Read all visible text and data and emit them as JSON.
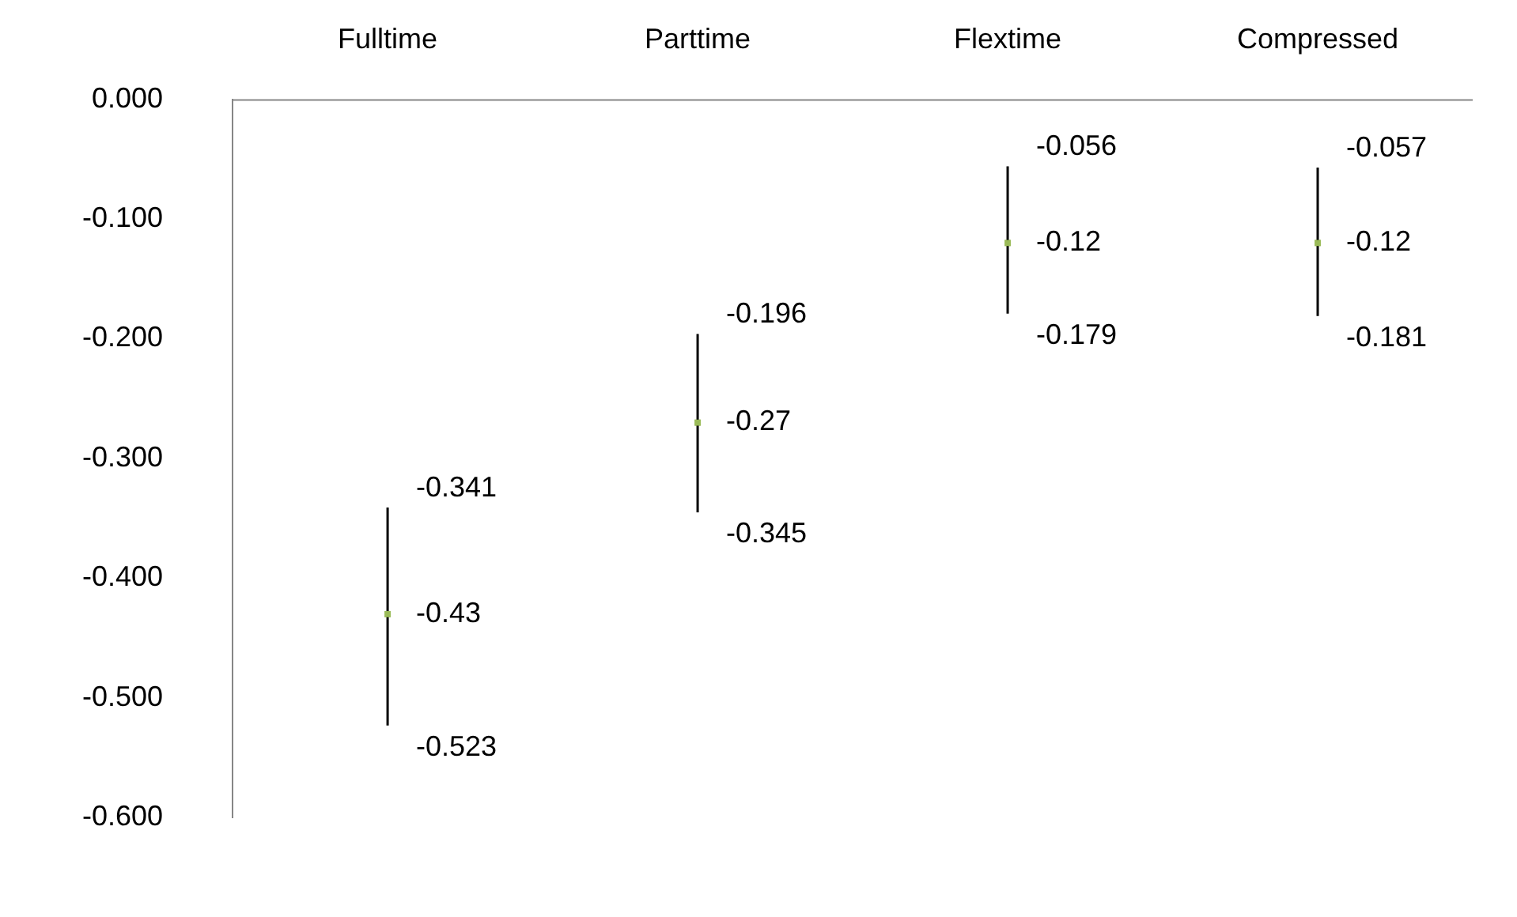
{
  "chart_data": {
    "type": "scatter",
    "categories": [
      "Fulltime",
      "Parttime",
      "Flextime",
      "Compressed"
    ],
    "series": [
      {
        "color": "#9bbb59",
        "values": [
          -0.43,
          -0.27,
          -0.12,
          -0.12
        ],
        "errors": [
          [
            -0.523,
            -0.341
          ],
          [
            -0.345,
            -0.196
          ],
          [
            -0.179,
            -0.056
          ],
          [
            -0.181,
            -0.057
          ]
        ]
      }
    ],
    "ylim": [
      -0.6,
      0
    ],
    "yticks": [
      {
        "value": 0,
        "label": "0.000"
      },
      {
        "value": -0.1,
        "label": "-0.100"
      },
      {
        "value": -0.2,
        "label": "-0.200"
      },
      {
        "value": -0.3,
        "label": "-0.300"
      },
      {
        "value": -0.4,
        "label": "-0.400"
      },
      {
        "value": -0.5,
        "label": "-0.500"
      },
      {
        "value": -0.6,
        "label": "-0.600"
      }
    ],
    "grid": false,
    "legend": false,
    "marker": "square",
    "data_labels": true,
    "annotations": [
      {
        "text": "-0.341",
        "x": "Fulltime",
        "y": -0.341
      },
      {
        "text": "-0.523",
        "x": "Fulltime",
        "y": -0.523
      },
      {
        "text": "-0.196",
        "x": "Parttime",
        "y": -0.196
      },
      {
        "text": "-0.345",
        "x": "Parttime",
        "y": -0.345
      },
      {
        "text": "-0.056",
        "x": "Flextime",
        "y": -0.056
      },
      {
        "text": "-0.179",
        "x": "Flextime",
        "y": -0.179
      },
      {
        "text": "-0.057",
        "x": "Compressed",
        "y": -0.057
      },
      {
        "text": "-0.181",
        "x": "Compressed",
        "y": -0.181
      }
    ]
  }
}
